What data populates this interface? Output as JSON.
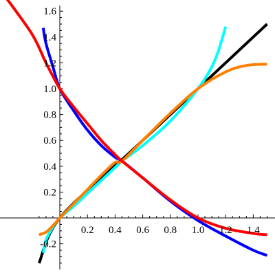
{
  "chart_data": {
    "type": "line",
    "title": "",
    "xlabel": "",
    "ylabel": "",
    "xlim": [
      -0.15,
      1.5
    ],
    "ylim": [
      -0.35,
      1.65
    ],
    "grid": false,
    "legend": "none",
    "x_ticks": [
      {
        "value": 0.2,
        "label": "0.2"
      },
      {
        "value": 0.4,
        "label": "0.4"
      },
      {
        "value": 0.6,
        "label": "0.6"
      },
      {
        "value": 0.8,
        "label": "0.8"
      },
      {
        "value": 1.0,
        "label": "1.0"
      },
      {
        "value": 1.2,
        "label": "1.2"
      },
      {
        "value": 1.4,
        "label": "1.4"
      }
    ],
    "y_ticks": [
      {
        "value": -0.2,
        "label": "-0.2"
      },
      {
        "value": 0.2,
        "label": "0.2"
      },
      {
        "value": 0.4,
        "label": "0.4"
      },
      {
        "value": 0.6,
        "label": "0.6"
      },
      {
        "value": 0.8,
        "label": "0.8"
      },
      {
        "value": 1.0,
        "label": "1.0"
      },
      {
        "value": 1.2,
        "label": "1.2"
      },
      {
        "value": 1.4,
        "label": "1.4"
      },
      {
        "value": 1.6,
        "label": "1.6"
      }
    ],
    "series": [
      {
        "color": "#000000",
        "x": [
          -0.15,
          0.0,
          0.5,
          1.0,
          1.5
        ],
        "y": [
          -0.35,
          0.0,
          0.5,
          1.0,
          1.5
        ]
      },
      {
        "color": "#0000ff",
        "x": [
          -0.12,
          -0.1,
          -0.05,
          0.0,
          0.1,
          0.2,
          0.3,
          0.4,
          0.45,
          0.6,
          0.8,
          1.0,
          1.2,
          1.4,
          1.5
        ],
        "y": [
          1.47,
          1.35,
          1.17,
          1.0,
          0.83,
          0.68,
          0.56,
          0.47,
          0.44,
          0.31,
          0.13,
          -0.02,
          -0.14,
          -0.25,
          -0.29
        ]
      },
      {
        "color": "#ff0000",
        "x": [
          -0.4,
          -0.2,
          -0.1,
          0.0,
          0.1,
          0.2,
          0.3,
          0.4,
          0.45,
          0.6,
          0.8,
          1.0,
          1.2,
          1.4,
          1.5
        ],
        "y": [
          1.72,
          1.42,
          1.2,
          1.0,
          0.86,
          0.73,
          0.6,
          0.49,
          0.44,
          0.31,
          0.14,
          0.0,
          -0.08,
          -0.12,
          -0.13
        ]
      },
      {
        "color": "#00ffff",
        "x": [
          -0.12,
          -0.1,
          -0.05,
          0.0,
          0.1,
          0.2,
          0.3,
          0.4,
          0.45,
          0.6,
          0.8,
          1.0,
          1.1,
          1.15,
          1.2
        ],
        "y": [
          -0.27,
          -0.17,
          -0.07,
          0.0,
          0.09,
          0.19,
          0.29,
          0.39,
          0.44,
          0.56,
          0.75,
          1.0,
          1.17,
          1.3,
          1.48
        ]
      },
      {
        "color": "#ff8000",
        "x": [
          -0.15,
          -0.1,
          -0.05,
          0.0,
          0.1,
          0.2,
          0.3,
          0.4,
          0.45,
          0.6,
          0.8,
          1.0,
          1.2,
          1.35,
          1.5
        ],
        "y": [
          -0.13,
          -0.11,
          -0.06,
          0.0,
          0.11,
          0.22,
          0.33,
          0.43,
          0.44,
          0.6,
          0.81,
          1.0,
          1.13,
          1.18,
          1.19
        ]
      }
    ]
  }
}
